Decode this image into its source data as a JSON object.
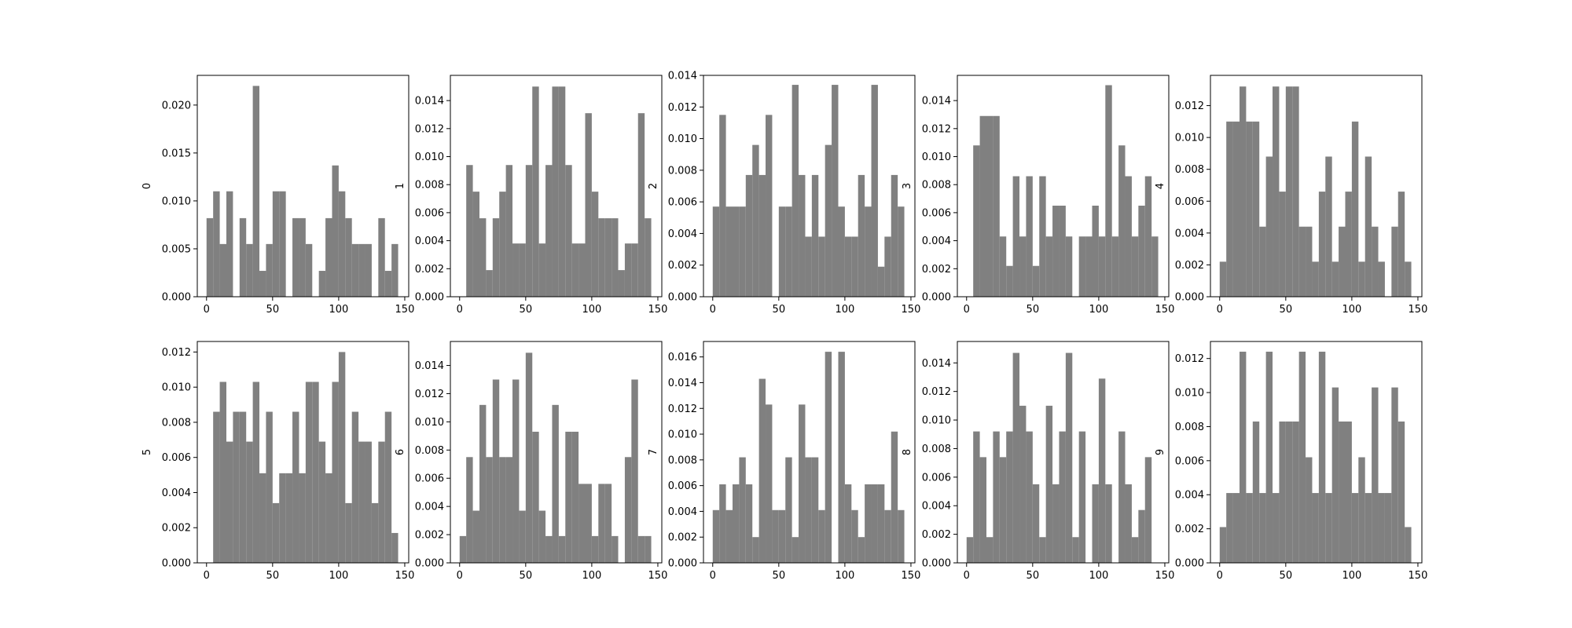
{
  "chart_data": [
    {
      "type": "histogram",
      "ylabel": "0",
      "color": "#808080",
      "bins": [
        0,
        5,
        10,
        15,
        20,
        25,
        30,
        35,
        40,
        45,
        50,
        55,
        60,
        65,
        70,
        75,
        80,
        85,
        90,
        95,
        100,
        105,
        110,
        115,
        120,
        125,
        130,
        135,
        140,
        145
      ],
      "values": [
        0.0082,
        0.011,
        0.0055,
        0.011,
        0,
        0.0082,
        0.0055,
        0.022,
        0.0027,
        0.0055,
        0.011,
        0.011,
        0,
        0.0082,
        0.0082,
        0.0055,
        0,
        0.0027,
        0.0082,
        0.0137,
        0.011,
        0.0082,
        0.0055,
        0.0055,
        0.0055,
        0,
        0.0082,
        0.0027,
        0.0055
      ],
      "xlim": [
        -7,
        153
      ],
      "xticks": [
        0,
        50,
        100,
        150
      ],
      "ylim": [
        0,
        0.0231
      ],
      "yticks": [
        {
          "value": 0,
          "label": "0.000"
        },
        {
          "value": 0.005,
          "label": "0.005"
        },
        {
          "value": 0.01,
          "label": "0.010"
        },
        {
          "value": 0.015,
          "label": "0.015"
        },
        {
          "value": 0.02,
          "label": "0.020"
        }
      ]
    },
    {
      "type": "histogram",
      "ylabel": "1",
      "color": "#808080",
      "bins": [
        0,
        5,
        10,
        15,
        20,
        25,
        30,
        35,
        40,
        45,
        50,
        55,
        60,
        65,
        70,
        75,
        80,
        85,
        90,
        95,
        100,
        105,
        110,
        115,
        120,
        125,
        130,
        135,
        140,
        145
      ],
      "values": [
        0,
        0.0094,
        0.0075,
        0.0056,
        0.0019,
        0.0056,
        0.0075,
        0.0094,
        0.0038,
        0.0038,
        0.0094,
        0.015,
        0.0038,
        0.0094,
        0.015,
        0.015,
        0.0094,
        0.0038,
        0.0038,
        0.0131,
        0.0075,
        0.0056,
        0.0056,
        0.0056,
        0.0019,
        0.0038,
        0.0038,
        0.0131,
        0.0056
      ],
      "xlim": [
        -7,
        153
      ],
      "xticks": [
        0,
        50,
        100,
        150
      ],
      "ylim": [
        0,
        0.0158
      ],
      "yticks": [
        {
          "value": 0,
          "label": "0.000"
        },
        {
          "value": 0.002,
          "label": "0.002"
        },
        {
          "value": 0.004,
          "label": "0.004"
        },
        {
          "value": 0.006,
          "label": "0.006"
        },
        {
          "value": 0.008,
          "label": "0.008"
        },
        {
          "value": 0.01,
          "label": "0.010"
        },
        {
          "value": 0.012,
          "label": "0.012"
        },
        {
          "value": 0.014,
          "label": "0.014"
        }
      ]
    },
    {
      "type": "histogram",
      "ylabel": "2",
      "color": "#808080",
      "bins": [
        0,
        5,
        10,
        15,
        20,
        25,
        30,
        35,
        40,
        45,
        50,
        55,
        60,
        65,
        70,
        75,
        80,
        85,
        90,
        95,
        100,
        105,
        110,
        115,
        120,
        125,
        130,
        135,
        140,
        145
      ],
      "values": [
        0.0057,
        0.0115,
        0.0057,
        0.0057,
        0.0057,
        0.0077,
        0.0096,
        0.0077,
        0.0115,
        0,
        0.0057,
        0.0057,
        0.0134,
        0.0077,
        0.0038,
        0.0077,
        0.0038,
        0.0096,
        0.0134,
        0.0057,
        0.0038,
        0.0038,
        0.0077,
        0.0057,
        0.0134,
        0.0019,
        0.0038,
        0.0077,
        0.0057
      ],
      "xlim": [
        -7,
        153
      ],
      "xticks": [
        0,
        50,
        100,
        150
      ],
      "ylim": [
        0,
        0.014
      ],
      "yticks": [
        {
          "value": 0,
          "label": "0.000"
        },
        {
          "value": 0.002,
          "label": "0.002"
        },
        {
          "value": 0.004,
          "label": "0.004"
        },
        {
          "value": 0.006,
          "label": "0.006"
        },
        {
          "value": 0.008,
          "label": "0.008"
        },
        {
          "value": 0.01,
          "label": "0.010"
        },
        {
          "value": 0.012,
          "label": "0.012"
        },
        {
          "value": 0.014,
          "label": "0.014"
        }
      ]
    },
    {
      "type": "histogram",
      "ylabel": "3",
      "color": "#808080",
      "bins": [
        0,
        5,
        10,
        15,
        20,
        25,
        30,
        35,
        40,
        45,
        50,
        55,
        60,
        65,
        70,
        75,
        80,
        85,
        90,
        95,
        100,
        105,
        110,
        115,
        120,
        125,
        130,
        135,
        140,
        145
      ],
      "values": [
        0,
        0.0108,
        0.0129,
        0.0129,
        0.0129,
        0.0043,
        0.0022,
        0.0086,
        0.0043,
        0.0086,
        0.0022,
        0.0086,
        0.0043,
        0.0065,
        0.0065,
        0.0043,
        0,
        0.0043,
        0.0043,
        0.0065,
        0.0043,
        0.0151,
        0.0043,
        0.0108,
        0.0086,
        0.0043,
        0.0065,
        0.0086,
        0.0043
      ],
      "xlim": [
        -7,
        153
      ],
      "xticks": [
        0,
        50,
        100,
        150
      ],
      "ylim": [
        0,
        0.0158
      ],
      "yticks": [
        {
          "value": 0,
          "label": "0.000"
        },
        {
          "value": 0.002,
          "label": "0.002"
        },
        {
          "value": 0.004,
          "label": "0.004"
        },
        {
          "value": 0.006,
          "label": "0.006"
        },
        {
          "value": 0.008,
          "label": "0.008"
        },
        {
          "value": 0.01,
          "label": "0.010"
        },
        {
          "value": 0.012,
          "label": "0.012"
        },
        {
          "value": 0.014,
          "label": "0.014"
        }
      ]
    },
    {
      "type": "histogram",
      "ylabel": "4",
      "color": "#808080",
      "bins": [
        0,
        5,
        10,
        15,
        20,
        25,
        30,
        35,
        40,
        45,
        50,
        55,
        60,
        65,
        70,
        75,
        80,
        85,
        90,
        95,
        100,
        105,
        110,
        115,
        120,
        125,
        130,
        135,
        140,
        145
      ],
      "values": [
        0.0022,
        0.011,
        0.011,
        0.0132,
        0.011,
        0.011,
        0.0044,
        0.0088,
        0.0132,
        0.0066,
        0.0132,
        0.0132,
        0.0044,
        0.0044,
        0.0022,
        0.0066,
        0.0088,
        0.0022,
        0.0044,
        0.0066,
        0.011,
        0.0022,
        0.0088,
        0.0044,
        0.0022,
        0,
        0.0044,
        0.0066,
        0.0022
      ],
      "xlim": [
        -7,
        153
      ],
      "xticks": [
        0,
        50,
        100,
        150
      ],
      "ylim": [
        0,
        0.0139
      ],
      "yticks": [
        {
          "value": 0,
          "label": "0.000"
        },
        {
          "value": 0.002,
          "label": "0.002"
        },
        {
          "value": 0.004,
          "label": "0.004"
        },
        {
          "value": 0.006,
          "label": "0.006"
        },
        {
          "value": 0.008,
          "label": "0.008"
        },
        {
          "value": 0.01,
          "label": "0.010"
        },
        {
          "value": 0.012,
          "label": "0.012"
        }
      ]
    },
    {
      "type": "histogram",
      "ylabel": "5",
      "color": "#808080",
      "bins": [
        0,
        5,
        10,
        15,
        20,
        25,
        30,
        35,
        40,
        45,
        50,
        55,
        60,
        65,
        70,
        75,
        80,
        85,
        90,
        95,
        100,
        105,
        110,
        115,
        120,
        125,
        130,
        135,
        140,
        145
      ],
      "values": [
        0,
        0.0086,
        0.0103,
        0.0069,
        0.0086,
        0.0086,
        0.0069,
        0.0103,
        0.0051,
        0.0086,
        0.0034,
        0.0051,
        0.0051,
        0.0086,
        0.0051,
        0.0103,
        0.0103,
        0.0069,
        0.0051,
        0.0103,
        0.012,
        0.0034,
        0.0086,
        0.0069,
        0.0069,
        0.0034,
        0.0069,
        0.0086,
        0.0017
      ],
      "xlim": [
        -7,
        153
      ],
      "xticks": [
        0,
        50,
        100,
        150
      ],
      "ylim": [
        0,
        0.0126
      ],
      "yticks": [
        {
          "value": 0,
          "label": "0.000"
        },
        {
          "value": 0.002,
          "label": "0.002"
        },
        {
          "value": 0.004,
          "label": "0.004"
        },
        {
          "value": 0.006,
          "label": "0.006"
        },
        {
          "value": 0.008,
          "label": "0.008"
        },
        {
          "value": 0.01,
          "label": "0.010"
        },
        {
          "value": 0.012,
          "label": "0.012"
        }
      ]
    },
    {
      "type": "histogram",
      "ylabel": "6",
      "color": "#808080",
      "bins": [
        0,
        5,
        10,
        15,
        20,
        25,
        30,
        35,
        40,
        45,
        50,
        55,
        60,
        65,
        70,
        75,
        80,
        85,
        90,
        95,
        100,
        105,
        110,
        115,
        120,
        125,
        130,
        135,
        140,
        145
      ],
      "values": [
        0.0019,
        0.0075,
        0.0037,
        0.0112,
        0.0075,
        0.013,
        0.0075,
        0.0075,
        0.013,
        0.0037,
        0.0149,
        0.0093,
        0.0037,
        0.0019,
        0.0112,
        0.0019,
        0.0093,
        0.0093,
        0.0056,
        0.0056,
        0.0019,
        0.0056,
        0.0056,
        0.0019,
        0,
        0.0075,
        0.013,
        0.0019,
        0.0019
      ],
      "xlim": [
        -7,
        153
      ],
      "xticks": [
        0,
        50,
        100,
        150
      ],
      "ylim": [
        0,
        0.0157
      ],
      "yticks": [
        {
          "value": 0,
          "label": "0.000"
        },
        {
          "value": 0.002,
          "label": "0.002"
        },
        {
          "value": 0.004,
          "label": "0.004"
        },
        {
          "value": 0.006,
          "label": "0.006"
        },
        {
          "value": 0.008,
          "label": "0.008"
        },
        {
          "value": 0.01,
          "label": "0.010"
        },
        {
          "value": 0.012,
          "label": "0.012"
        },
        {
          "value": 0.014,
          "label": "0.014"
        }
      ]
    },
    {
      "type": "histogram",
      "ylabel": "7",
      "color": "#808080",
      "bins": [
        0,
        5,
        10,
        15,
        20,
        25,
        30,
        35,
        40,
        45,
        50,
        55,
        60,
        65,
        70,
        75,
        80,
        85,
        90,
        95,
        100,
        105,
        110,
        115,
        120,
        125,
        130,
        135,
        140,
        145
      ],
      "values": [
        0.0041,
        0.0061,
        0.0041,
        0.0061,
        0.0082,
        0.0061,
        0.002,
        0.0143,
        0.0123,
        0.0041,
        0.0041,
        0.0082,
        0.002,
        0.0123,
        0.0082,
        0.0082,
        0.0041,
        0.0164,
        0,
        0.0164,
        0.0061,
        0.0041,
        0.002,
        0.0061,
        0.0061,
        0.0061,
        0.0041,
        0.0102,
        0.0041
      ],
      "xlim": [
        -7,
        153
      ],
      "xticks": [
        0,
        50,
        100,
        150
      ],
      "ylim": [
        0,
        0.0172
      ],
      "yticks": [
        {
          "value": 0,
          "label": "0.000"
        },
        {
          "value": 0.002,
          "label": "0.002"
        },
        {
          "value": 0.004,
          "label": "0.004"
        },
        {
          "value": 0.006,
          "label": "0.006"
        },
        {
          "value": 0.008,
          "label": "0.008"
        },
        {
          "value": 0.01,
          "label": "0.010"
        },
        {
          "value": 0.012,
          "label": "0.012"
        },
        {
          "value": 0.014,
          "label": "0.014"
        },
        {
          "value": 0.016,
          "label": "0.016"
        }
      ]
    },
    {
      "type": "histogram",
      "ylabel": "8",
      "color": "#808080",
      "bins": [
        0,
        5,
        10,
        15,
        20,
        25,
        30,
        35,
        40,
        45,
        50,
        55,
        60,
        65,
        70,
        75,
        80,
        85,
        90,
        95,
        100,
        105,
        110,
        115,
        120,
        125,
        130,
        135,
        140,
        145
      ],
      "values": [
        0.0018,
        0.0092,
        0.0074,
        0.0018,
        0.0092,
        0.0074,
        0.0092,
        0.0147,
        0.011,
        0.0092,
        0.0055,
        0.0018,
        0.011,
        0.0055,
        0.0092,
        0.0147,
        0.0018,
        0.0092,
        0,
        0.0055,
        0.0129,
        0.0055,
        0,
        0.0092,
        0.0055,
        0.0018,
        0.0037,
        0.0074,
        0
      ],
      "xlim": [
        -7,
        153
      ],
      "xticks": [
        0,
        50,
        100,
        150
      ],
      "ylim": [
        0,
        0.0155
      ],
      "yticks": [
        {
          "value": 0,
          "label": "0.000"
        },
        {
          "value": 0.002,
          "label": "0.002"
        },
        {
          "value": 0.004,
          "label": "0.004"
        },
        {
          "value": 0.006,
          "label": "0.006"
        },
        {
          "value": 0.008,
          "label": "0.008"
        },
        {
          "value": 0.01,
          "label": "0.010"
        },
        {
          "value": 0.012,
          "label": "0.012"
        },
        {
          "value": 0.014,
          "label": "0.014"
        }
      ]
    },
    {
      "type": "histogram",
      "ylabel": "9",
      "color": "#808080",
      "bins": [
        0,
        5,
        10,
        15,
        20,
        25,
        30,
        35,
        40,
        45,
        50,
        55,
        60,
        65,
        70,
        75,
        80,
        85,
        90,
        95,
        100,
        105,
        110,
        115,
        120,
        125,
        130,
        135,
        140,
        145
      ],
      "values": [
        0.0021,
        0.0041,
        0.0041,
        0.0124,
        0.0041,
        0.0083,
        0.0041,
        0.0124,
        0.0041,
        0.0083,
        0.0083,
        0.0083,
        0.0124,
        0.0062,
        0.0041,
        0.0124,
        0.0041,
        0.0103,
        0.0083,
        0.0083,
        0.0041,
        0.0062,
        0.0041,
        0.0103,
        0.0041,
        0.0041,
        0.0103,
        0.0083,
        0.0021
      ],
      "xlim": [
        -7,
        153
      ],
      "xticks": [
        0,
        50,
        100,
        150
      ],
      "ylim": [
        0,
        0.013
      ],
      "yticks": [
        {
          "value": 0,
          "label": "0.000"
        },
        {
          "value": 0.002,
          "label": "0.002"
        },
        {
          "value": 0.004,
          "label": "0.004"
        },
        {
          "value": 0.006,
          "label": "0.006"
        },
        {
          "value": 0.008,
          "label": "0.008"
        },
        {
          "value": 0.01,
          "label": "0.010"
        },
        {
          "value": 0.012,
          "label": "0.012"
        }
      ]
    }
  ]
}
